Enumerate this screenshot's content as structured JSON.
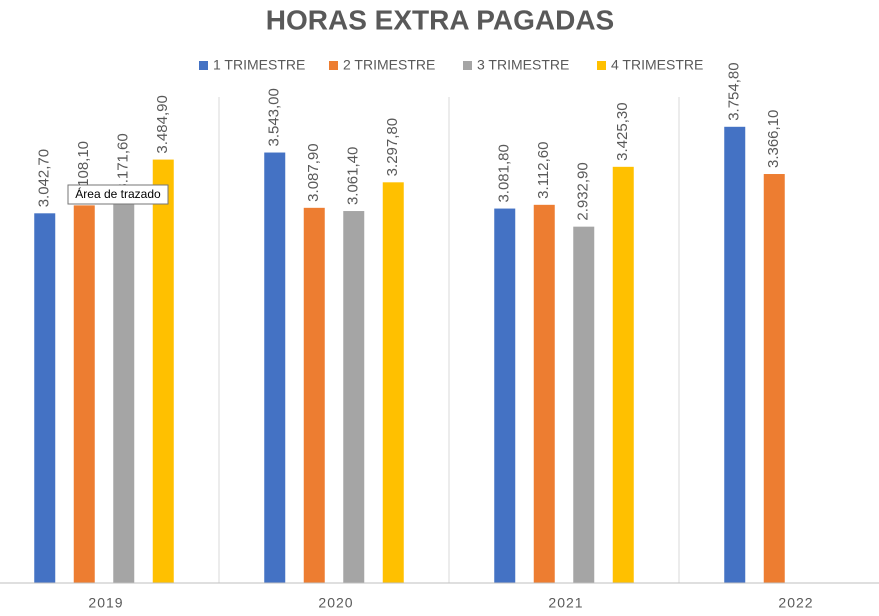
{
  "chart_data": {
    "type": "bar",
    "title": "HORAS EXTRA PAGADAS",
    "categories": [
      "2019",
      "2020",
      "2021",
      "2022"
    ],
    "series": [
      {
        "name": "1 TRIMESTRE",
        "color": "#4472c4",
        "values": [
          3042.7,
          3543.0,
          3081.8,
          3754.8
        ],
        "value_labels": [
          "3.042,70",
          "3.543,00",
          "3.081,80",
          "3.754,80"
        ]
      },
      {
        "name": "2 TRIMESTRE",
        "color": "#ed7d31",
        "values": [
          3108.1,
          3087.9,
          3112.6,
          3366.1
        ],
        "value_labels": [
          "3.108,10",
          "3.087,90",
          "3.112,60",
          "3.366,10"
        ]
      },
      {
        "name": "3 TRIMESTRE",
        "color": "#a5a5a5",
        "values": [
          3171.6,
          3061.4,
          2932.9,
          null
        ],
        "value_labels": [
          "3.171,60",
          "3.061,40",
          "2.932,90",
          null
        ]
      },
      {
        "name": "4 TRIMESTRE",
        "color": "#ffc000",
        "values": [
          3484.9,
          3297.8,
          3425.3,
          null
        ],
        "value_labels": [
          "3.484,90",
          "3.297,80",
          "3.425,30",
          null
        ]
      }
    ],
    "ylim": [
      0,
      4000
    ],
    "tooltip": "Área de trazado"
  }
}
